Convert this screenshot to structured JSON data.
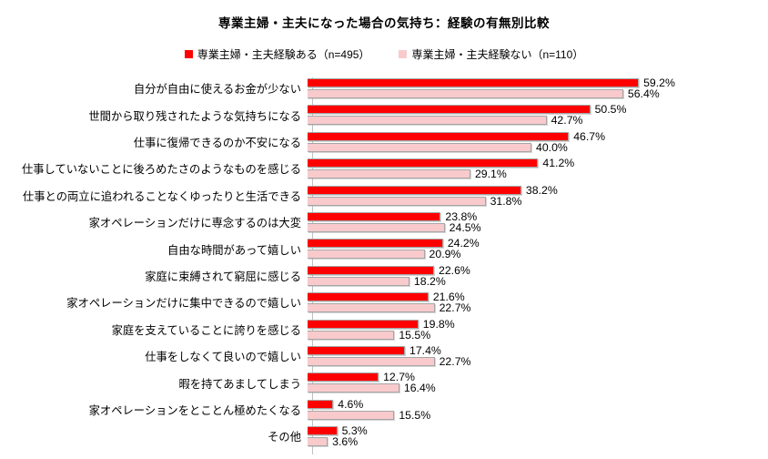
{
  "chart_data": {
    "type": "bar",
    "orientation": "horizontal",
    "title": "専業主婦・主夫になった場合の気持ち：経験の有無別比較",
    "legend_position": "top",
    "grid": false,
    "value_suffix": "%",
    "xlim": [
      0,
      81.5
    ],
    "categories": [
      "自分が自由に使えるお金が少ない",
      "世間から取り残されたような気持ちになる",
      "仕事に復帰できるのか不安になる",
      "仕事していないことに後ろめたさのようなものを感じる",
      "仕事との両立に追われることなくゆったりと生活できる",
      "家オペレーションだけに専念するのは大変",
      "自由な時間があって嬉しい",
      "家庭に束縛されて窮屈に感じる",
      "家オペレーションだけに集中できるので嬉しい",
      "家庭を支えていることに誇りを感じる",
      "仕事をしなくて良いので嬉しい",
      "暇を持てあましてしまう",
      "家オペレーションをとことん極めたくなる",
      "その他"
    ],
    "series": [
      {
        "name": "専業主婦・主夫経験ある（n=495）",
        "color": "#ff0000",
        "values": [
          59.2,
          50.5,
          46.7,
          41.2,
          38.2,
          23.8,
          24.2,
          22.6,
          21.6,
          19.8,
          17.4,
          12.7,
          4.6,
          5.3
        ],
        "labels": [
          "59.2%",
          "50.5%",
          "46.7%",
          "41.2%",
          "38.2%",
          "23.8%",
          "24.2%",
          "22.6%",
          "21.6%",
          "19.8%",
          "17.4%",
          "12.7%",
          "4.6%",
          "5.3%"
        ]
      },
      {
        "name": "専業主婦・主夫経験ない（n=110）",
        "color": "#f8cacc",
        "values": [
          56.4,
          42.7,
          40.0,
          29.1,
          31.8,
          24.5,
          20.9,
          18.2,
          22.7,
          15.5,
          22.7,
          16.4,
          15.5,
          3.6
        ],
        "labels": [
          "56.4%",
          "42.7%",
          "40.0%",
          "29.1%",
          "31.8%",
          "24.5%",
          "20.9%",
          "18.2%",
          "22.7%",
          "15.5%",
          "22.7%",
          "16.4%",
          "15.5%",
          "3.6%"
        ]
      }
    ]
  }
}
